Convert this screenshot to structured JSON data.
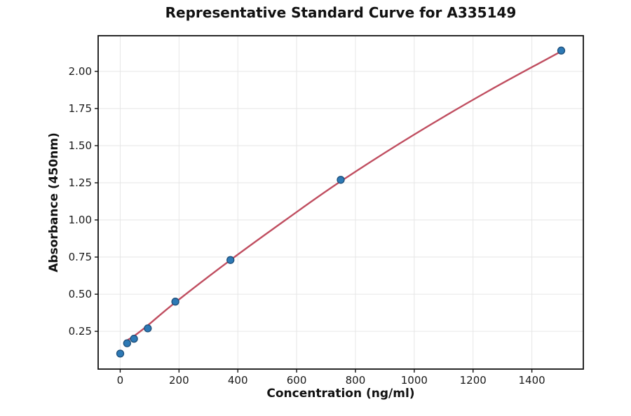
{
  "chart_data": {
    "type": "scatter",
    "title": "Representative Standard Curve for A335149",
    "xlabel": "Concentration (ng/ml)",
    "ylabel": "Absorbance (450nm)",
    "xlim": [
      -75,
      1575
    ],
    "ylim": [
      -0.004,
      2.24
    ],
    "x_ticks": [
      0,
      200,
      400,
      600,
      800,
      1000,
      1200,
      1400
    ],
    "x_tick_labels": [
      "0",
      "200",
      "400",
      "600",
      "800",
      "1000",
      "1200",
      "1400"
    ],
    "y_ticks": [
      0.25,
      0.5,
      0.75,
      1.0,
      1.25,
      1.5,
      1.75,
      2.0
    ],
    "y_tick_labels": [
      "0.25",
      "0.50",
      "0.75",
      "1.00",
      "1.25",
      "1.50",
      "1.75",
      "2.00"
    ],
    "grid": true,
    "legend": "none",
    "points": [
      {
        "x": 0,
        "y": 0.1
      },
      {
        "x": 23.4,
        "y": 0.17
      },
      {
        "x": 46.9,
        "y": 0.2
      },
      {
        "x": 93.8,
        "y": 0.27
      },
      {
        "x": 187.5,
        "y": 0.45
      },
      {
        "x": 375,
        "y": 0.73
      },
      {
        "x": 750,
        "y": 1.27
      },
      {
        "x": 1500,
        "y": 2.14
      }
    ],
    "fit_curve": [
      [
        23.4,
        0.19
      ],
      [
        46.9,
        0.218
      ],
      [
        93.8,
        0.29
      ],
      [
        187.5,
        0.445
      ],
      [
        375,
        0.73
      ],
      [
        562.5,
        1.0
      ],
      [
        750,
        1.26
      ],
      [
        1000,
        1.575
      ],
      [
        1250,
        1.865
      ],
      [
        1500,
        2.135
      ]
    ],
    "colors": {
      "point_fill": "#2d79b5",
      "point_edge": "#1d4e79",
      "curve": "#c04e60",
      "grid": "#e6e6e6",
      "spine": "#111111",
      "tick_text": "#1a1a1a",
      "background": "#ffffff"
    }
  }
}
